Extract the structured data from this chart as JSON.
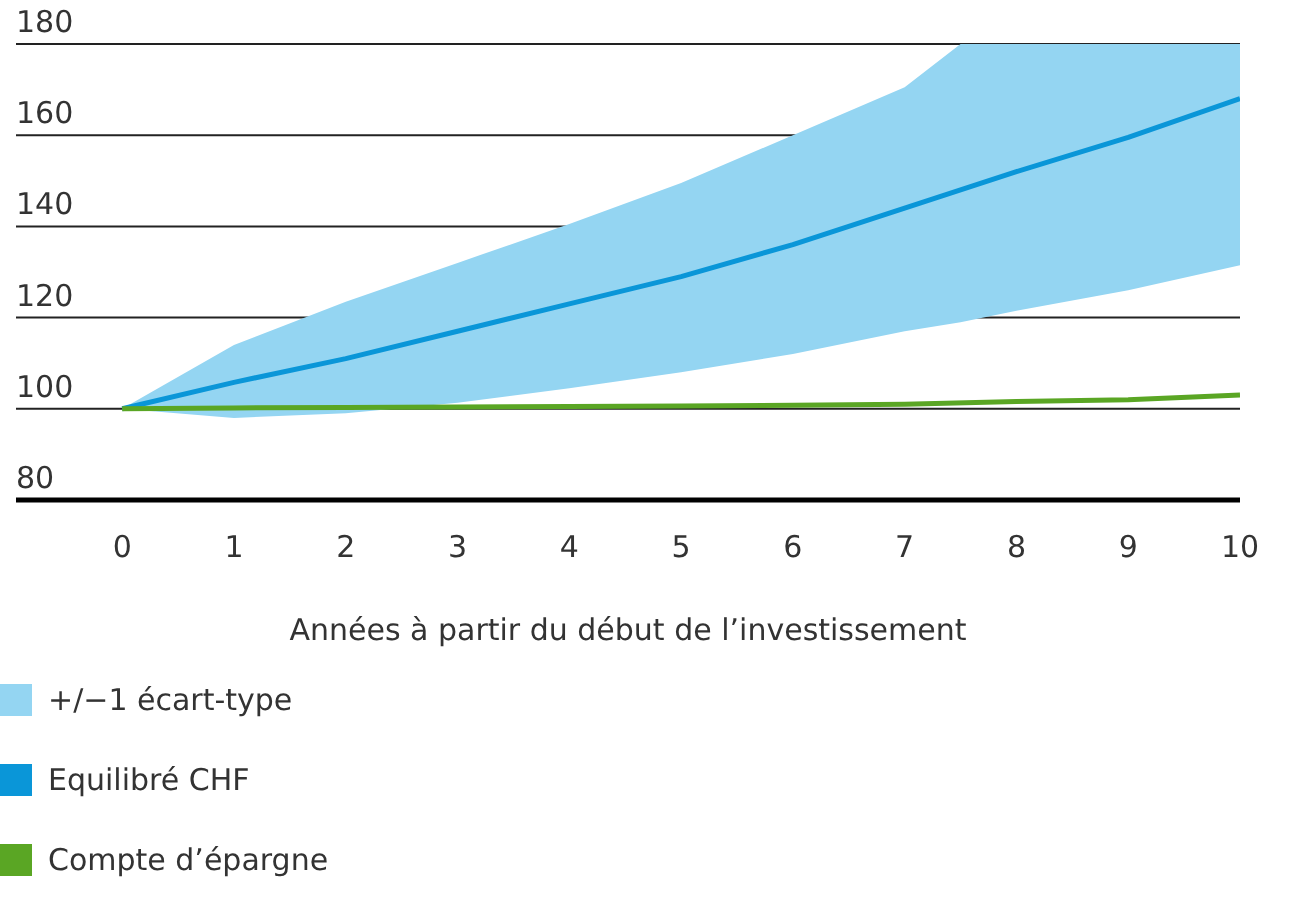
{
  "chart_data": {
    "type": "line",
    "xlabel": "Années à partir du début de l’investissement",
    "x": [
      0,
      1,
      2,
      3,
      4,
      5,
      6,
      7,
      8,
      9,
      10
    ],
    "series": [
      {
        "name": "+/−1 écart-type",
        "type": "area",
        "color": "#94d5f2",
        "x": [
          0,
          1,
          2,
          3,
          4,
          5,
          6,
          7,
          7.5,
          8,
          9,
          10
        ],
        "values": [
          null,
          null,
          null,
          null,
          null,
          null,
          null,
          null,
          null,
          null,
          null,
          null
        ],
        "lower": [
          100,
          98,
          99,
          101.3,
          104.5,
          108,
          112,
          117,
          119,
          121.5,
          126,
          131.5
        ],
        "upper": [
          100,
          114,
          123.5,
          132,
          140.5,
          149.5,
          160,
          170.5,
          180,
          180,
          180,
          180
        ]
      },
      {
        "name": "Equilibré CHF",
        "color": "#0a96d8",
        "values": [
          100,
          105.8,
          111,
          117,
          123,
          129,
          136,
          144,
          152,
          159.5,
          168
        ]
      },
      {
        "name": "Compte d’épargne",
        "color": "#5aa624",
        "values": [
          100,
          100.2,
          100.3,
          100.4,
          100.5,
          100.6,
          100.8,
          101,
          101.6,
          102,
          103
        ]
      }
    ],
    "xlim": [
      -0.95,
      10
    ],
    "xticks": [
      0,
      1,
      2,
      3,
      4,
      5,
      6,
      7,
      8,
      9,
      10
    ],
    "ylim": [
      80,
      180
    ],
    "yticks": [
      80,
      100,
      120,
      140,
      160,
      180
    ],
    "grid": "y",
    "legend": "bottom",
    "marker": "none",
    "line_style": "solid"
  }
}
